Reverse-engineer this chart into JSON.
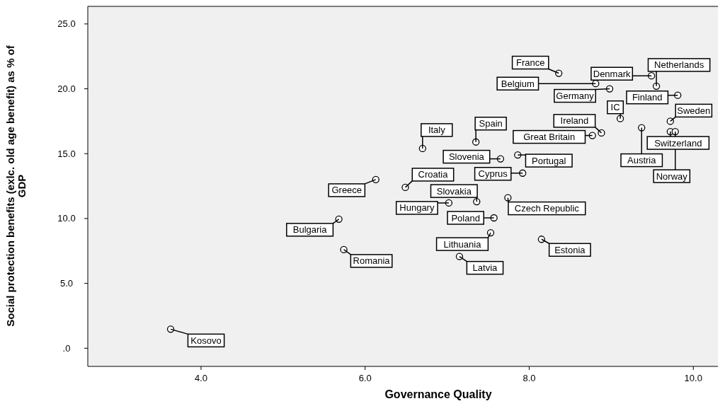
{
  "chart_data": {
    "type": "scatter",
    "xlabel": "Governance Quality",
    "ylabel": "Social protection benefits (exlc. old age benefit) as % of GDP",
    "xlim": [
      2.62,
      10.3
    ],
    "ylim": [
      -1.4,
      26.3
    ],
    "xticks": [
      {
        "value": 4,
        "label": "4.0"
      },
      {
        "value": 6,
        "label": "6.0"
      },
      {
        "value": 8,
        "label": "8.0"
      },
      {
        "value": 10,
        "label": "10.0"
      }
    ],
    "yticks": [
      {
        "value": 0,
        "label": ".0"
      },
      {
        "value": 5,
        "label": "5.0"
      },
      {
        "value": 10,
        "label": "10.0"
      },
      {
        "value": 15,
        "label": "15.0"
      },
      {
        "value": 20,
        "label": "20.0"
      },
      {
        "value": 25,
        "label": "25.0"
      }
    ],
    "grid": false,
    "marker": "circle",
    "series": [
      {
        "color": "#000000",
        "x": [
          3.63,
          5.68,
          5.74,
          6.13,
          6.49,
          6.7,
          7.02,
          7.36,
          7.35,
          7.15,
          7.53,
          7.57,
          7.65,
          7.92,
          7.86,
          7.74,
          8.15,
          8.36,
          8.81,
          8.98,
          8.77,
          8.88,
          9.11,
          9.49,
          9.55,
          9.81,
          9.72,
          9.37,
          9.72,
          9.78
        ],
        "values": [
          1.47,
          9.95,
          7.6,
          13.0,
          12.4,
          15.4,
          11.2,
          11.3,
          15.9,
          7.07,
          8.9,
          10.05,
          14.6,
          13.5,
          14.9,
          11.6,
          8.4,
          21.2,
          20.4,
          20.0,
          16.4,
          16.6,
          17.7,
          21.0,
          20.2,
          19.5,
          17.5,
          17.0,
          16.7,
          16.7
        ]
      }
    ],
    "annotations": [
      {
        "text": "Kosovo",
        "x": 3.63,
        "y": 1.47
      },
      {
        "text": "Bulgaria",
        "x": 5.68,
        "y": 9.95
      },
      {
        "text": "Romania",
        "x": 5.74,
        "y": 7.6
      },
      {
        "text": "Greece",
        "x": 6.13,
        "y": 13.0
      },
      {
        "text": "Croatia",
        "x": 6.49,
        "y": 12.4
      },
      {
        "text": "Italy",
        "x": 6.7,
        "y": 15.4
      },
      {
        "text": "Hungary",
        "x": 7.02,
        "y": 11.2
      },
      {
        "text": "Slovakia",
        "x": 7.36,
        "y": 11.3
      },
      {
        "text": "Spain",
        "x": 7.35,
        "y": 15.9
      },
      {
        "text": "Latvia",
        "x": 7.15,
        "y": 7.07
      },
      {
        "text": "Lithuania",
        "x": 7.53,
        "y": 8.9
      },
      {
        "text": "Poland",
        "x": 7.57,
        "y": 10.05
      },
      {
        "text": "Slovenia",
        "x": 7.65,
        "y": 14.6
      },
      {
        "text": "Cyprus",
        "x": 7.92,
        "y": 13.5
      },
      {
        "text": "Portugal",
        "x": 7.86,
        "y": 14.9
      },
      {
        "text": "Czech Republic",
        "x": 7.74,
        "y": 11.6
      },
      {
        "text": "Estonia",
        "x": 8.15,
        "y": 8.4
      },
      {
        "text": "France",
        "x": 8.36,
        "y": 21.2
      },
      {
        "text": "Belgium",
        "x": 8.81,
        "y": 20.4
      },
      {
        "text": "Germany",
        "x": 8.98,
        "y": 20.0
      },
      {
        "text": "Great Britain",
        "x": 8.77,
        "y": 16.4
      },
      {
        "text": "Ireland",
        "x": 8.88,
        "y": 16.6
      },
      {
        "text": "IC",
        "x": 9.11,
        "y": 17.7
      },
      {
        "text": "Denmark",
        "x": 9.49,
        "y": 21.0
      },
      {
        "text": "Netherlands",
        "x": 9.55,
        "y": 20.2
      },
      {
        "text": "Finland",
        "x": 9.81,
        "y": 19.5
      },
      {
        "text": "Sweden",
        "x": 9.72,
        "y": 17.5
      },
      {
        "text": "Austria",
        "x": 9.37,
        "y": 17.0
      },
      {
        "text": "Switzerland",
        "x": 9.72,
        "y": 16.7
      },
      {
        "text": "Norway",
        "x": 9.78,
        "y": 16.7
      }
    ]
  }
}
